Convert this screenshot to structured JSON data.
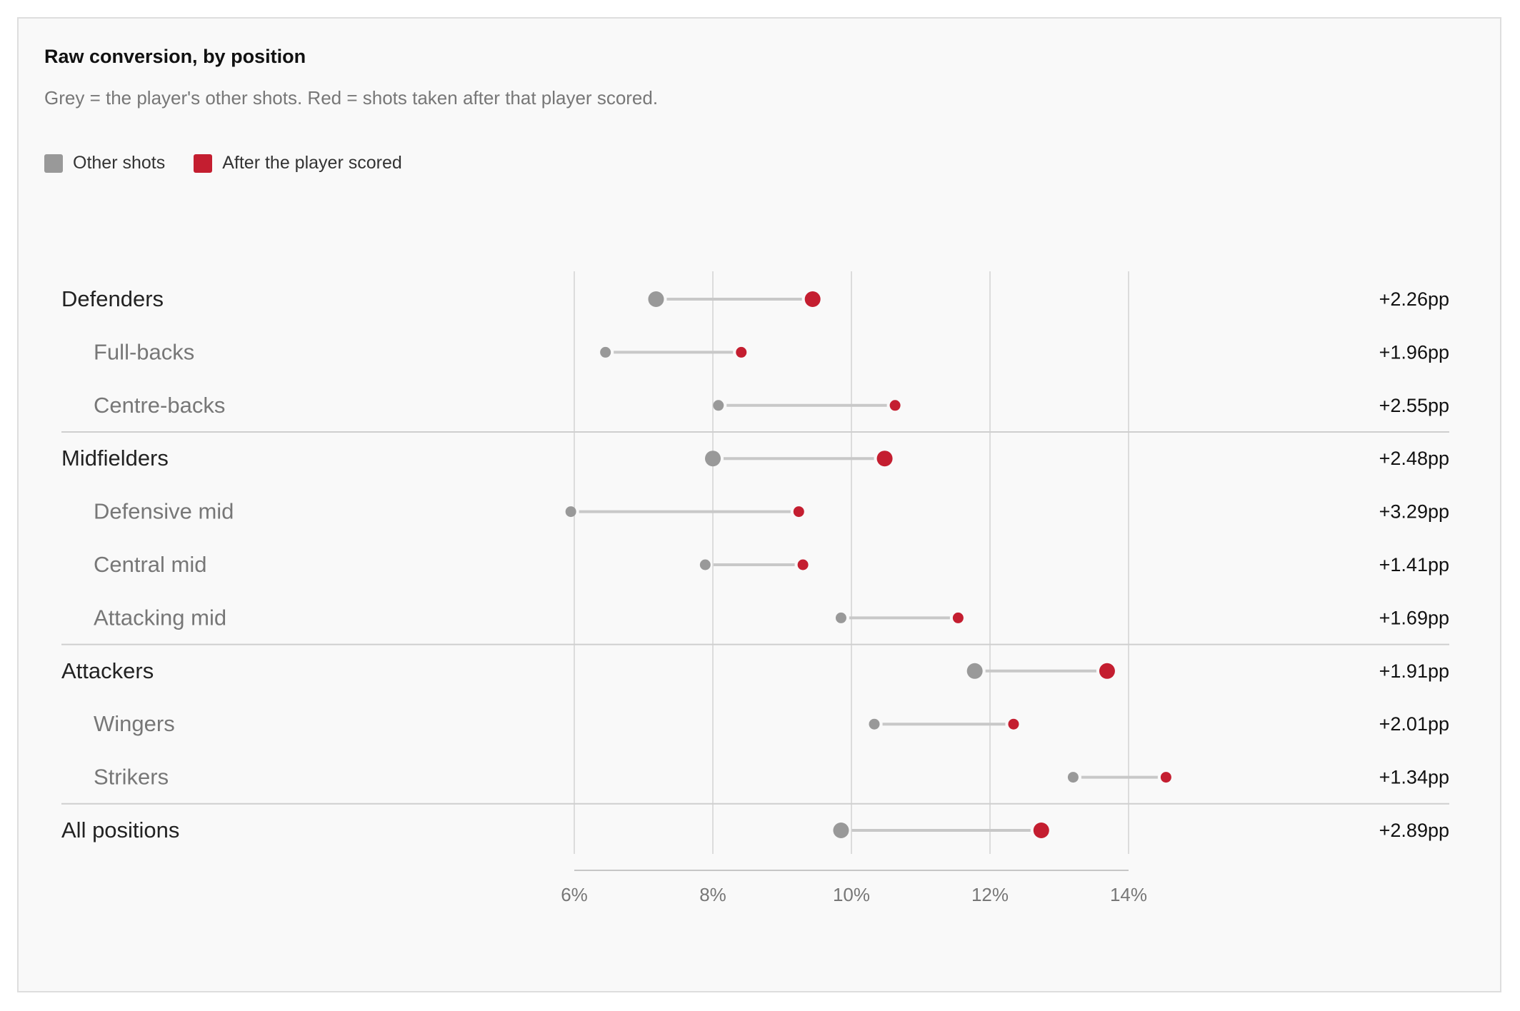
{
  "title": "Raw conversion, by position",
  "subtitle": "Grey = the player's other shots. Red = shots taken after that player scored.",
  "legend": [
    {
      "label": "Other shots",
      "color": "#999999"
    },
    {
      "label": "After the player scored",
      "color": "#c41e30"
    }
  ],
  "chart_data": {
    "type": "dumbbell",
    "title": "Raw conversion, by position",
    "subtitle": "Grey = the player's other shots. Red = shots taken after that player scored.",
    "x_ticks": [
      "6%",
      "8%",
      "10%",
      "12%",
      "14%"
    ],
    "x_tick_values": [
      6,
      8,
      10,
      12,
      14
    ],
    "xlim": [
      6,
      14
    ],
    "grid": true,
    "legend_position": "top-left",
    "series": [
      {
        "name": "Other shots",
        "color": "#999999"
      },
      {
        "name": "After the player scored",
        "color": "#c41e30"
      }
    ],
    "rows": [
      {
        "label": "Defenders",
        "level": "group",
        "other": 7.18,
        "after": 9.44,
        "delta": "+2.26pp"
      },
      {
        "label": "Full-backs",
        "level": "sub",
        "other": 6.45,
        "after": 8.41,
        "delta": "+1.96pp"
      },
      {
        "label": "Centre-backs",
        "level": "sub",
        "other": 8.08,
        "after": 10.63,
        "delta": "+2.55pp"
      },
      {
        "label": "Midfielders",
        "level": "group",
        "other": 8.0,
        "after": 10.48,
        "delta": "+2.48pp"
      },
      {
        "label": "Defensive mid",
        "level": "sub",
        "other": 5.95,
        "after": 9.24,
        "delta": "+3.29pp"
      },
      {
        "label": "Central mid",
        "level": "sub",
        "other": 7.89,
        "after": 9.3,
        "delta": "+1.41pp"
      },
      {
        "label": "Attacking mid",
        "level": "sub",
        "other": 9.85,
        "after": 11.54,
        "delta": "+1.69pp"
      },
      {
        "label": "Attackers",
        "level": "group",
        "other": 11.78,
        "after": 13.69,
        "delta": "+1.91pp"
      },
      {
        "label": "Wingers",
        "level": "sub",
        "other": 10.33,
        "after": 12.34,
        "delta": "+2.01pp"
      },
      {
        "label": "Strikers",
        "level": "sub",
        "other": 13.2,
        "after": 14.54,
        "delta": "+1.34pp"
      },
      {
        "label": "All positions",
        "level": "group",
        "other": 9.85,
        "after": 12.74,
        "delta": "+2.89pp"
      }
    ]
  }
}
